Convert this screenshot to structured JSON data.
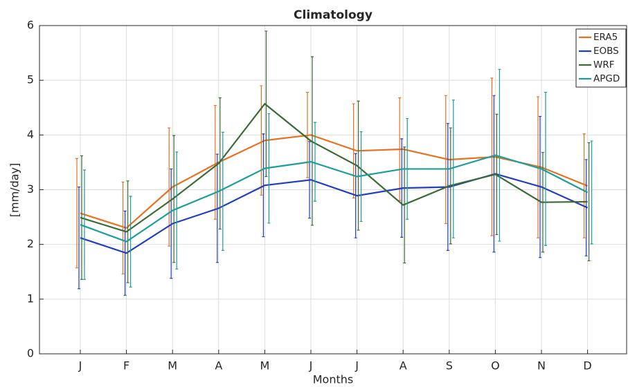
{
  "chart_data": {
    "type": "line",
    "title": "Climatology",
    "x_label": "Months",
    "y_label": "[mm/day]",
    "categories": [
      "J",
      "F",
      "M",
      "A",
      "M",
      "J",
      "J",
      "A",
      "S",
      "O",
      "N",
      "D"
    ],
    "ylim": [
      0,
      6
    ],
    "yticks": [
      0,
      1,
      2,
      3,
      4,
      5,
      6
    ],
    "grid": true,
    "legend": "top-right",
    "series": [
      {
        "name": "ERA5",
        "color": "#e8701e",
        "values": [
          2.57,
          2.3,
          3.05,
          3.5,
          3.9,
          4.0,
          3.71,
          3.74,
          3.55,
          3.6,
          3.41,
          3.07
        ],
        "errors": [
          1.0,
          0.84,
          1.08,
          1.04,
          1.0,
          0.78,
          0.86,
          0.94,
          1.17,
          1.44,
          1.29,
          0.95
        ]
      },
      {
        "name": "EOBS",
        "color": "#1f3fbf",
        "values": [
          2.12,
          1.84,
          2.38,
          2.66,
          3.08,
          3.18,
          2.89,
          3.03,
          3.05,
          3.29,
          3.05,
          2.67
        ],
        "errors": [
          0.93,
          0.77,
          1.0,
          0.99,
          0.94,
          0.7,
          0.77,
          0.9,
          1.16,
          1.43,
          1.29,
          0.88
        ]
      },
      {
        "name": "WRF",
        "color": "#3a6b35",
        "values": [
          2.49,
          2.23,
          2.83,
          3.48,
          4.57,
          3.89,
          3.44,
          2.72,
          3.07,
          3.28,
          2.77,
          2.78
        ],
        "errors": [
          1.13,
          0.93,
          1.16,
          1.2,
          1.33,
          1.54,
          1.18,
          1.06,
          1.06,
          1.1,
          0.91,
          1.08
        ]
      },
      {
        "name": "APGD",
        "color": "#1a9e9a",
        "values": [
          2.36,
          2.05,
          2.62,
          2.97,
          3.39,
          3.51,
          3.24,
          3.38,
          3.38,
          3.63,
          3.38,
          2.95
        ],
        "errors": [
          1.0,
          0.83,
          1.07,
          1.08,
          1.0,
          0.72,
          0.82,
          0.92,
          1.26,
          1.57,
          1.4,
          0.94
        ]
      }
    ]
  }
}
